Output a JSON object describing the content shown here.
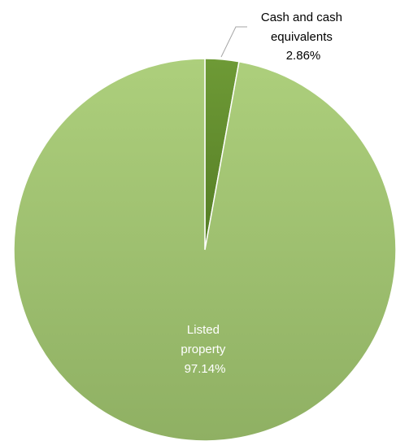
{
  "chart_data": {
    "type": "pie",
    "title": "",
    "slices": [
      {
        "label": "Cash and cash equivalents",
        "value": 2.86,
        "display": "2.86%",
        "color": "#5f8a2c"
      },
      {
        "label": "Listed property",
        "value": 97.14,
        "display": "97.14%",
        "color": "#a8c878"
      }
    ],
    "start_angle_deg": 0,
    "direction": "clockwise",
    "legend": "none"
  }
}
